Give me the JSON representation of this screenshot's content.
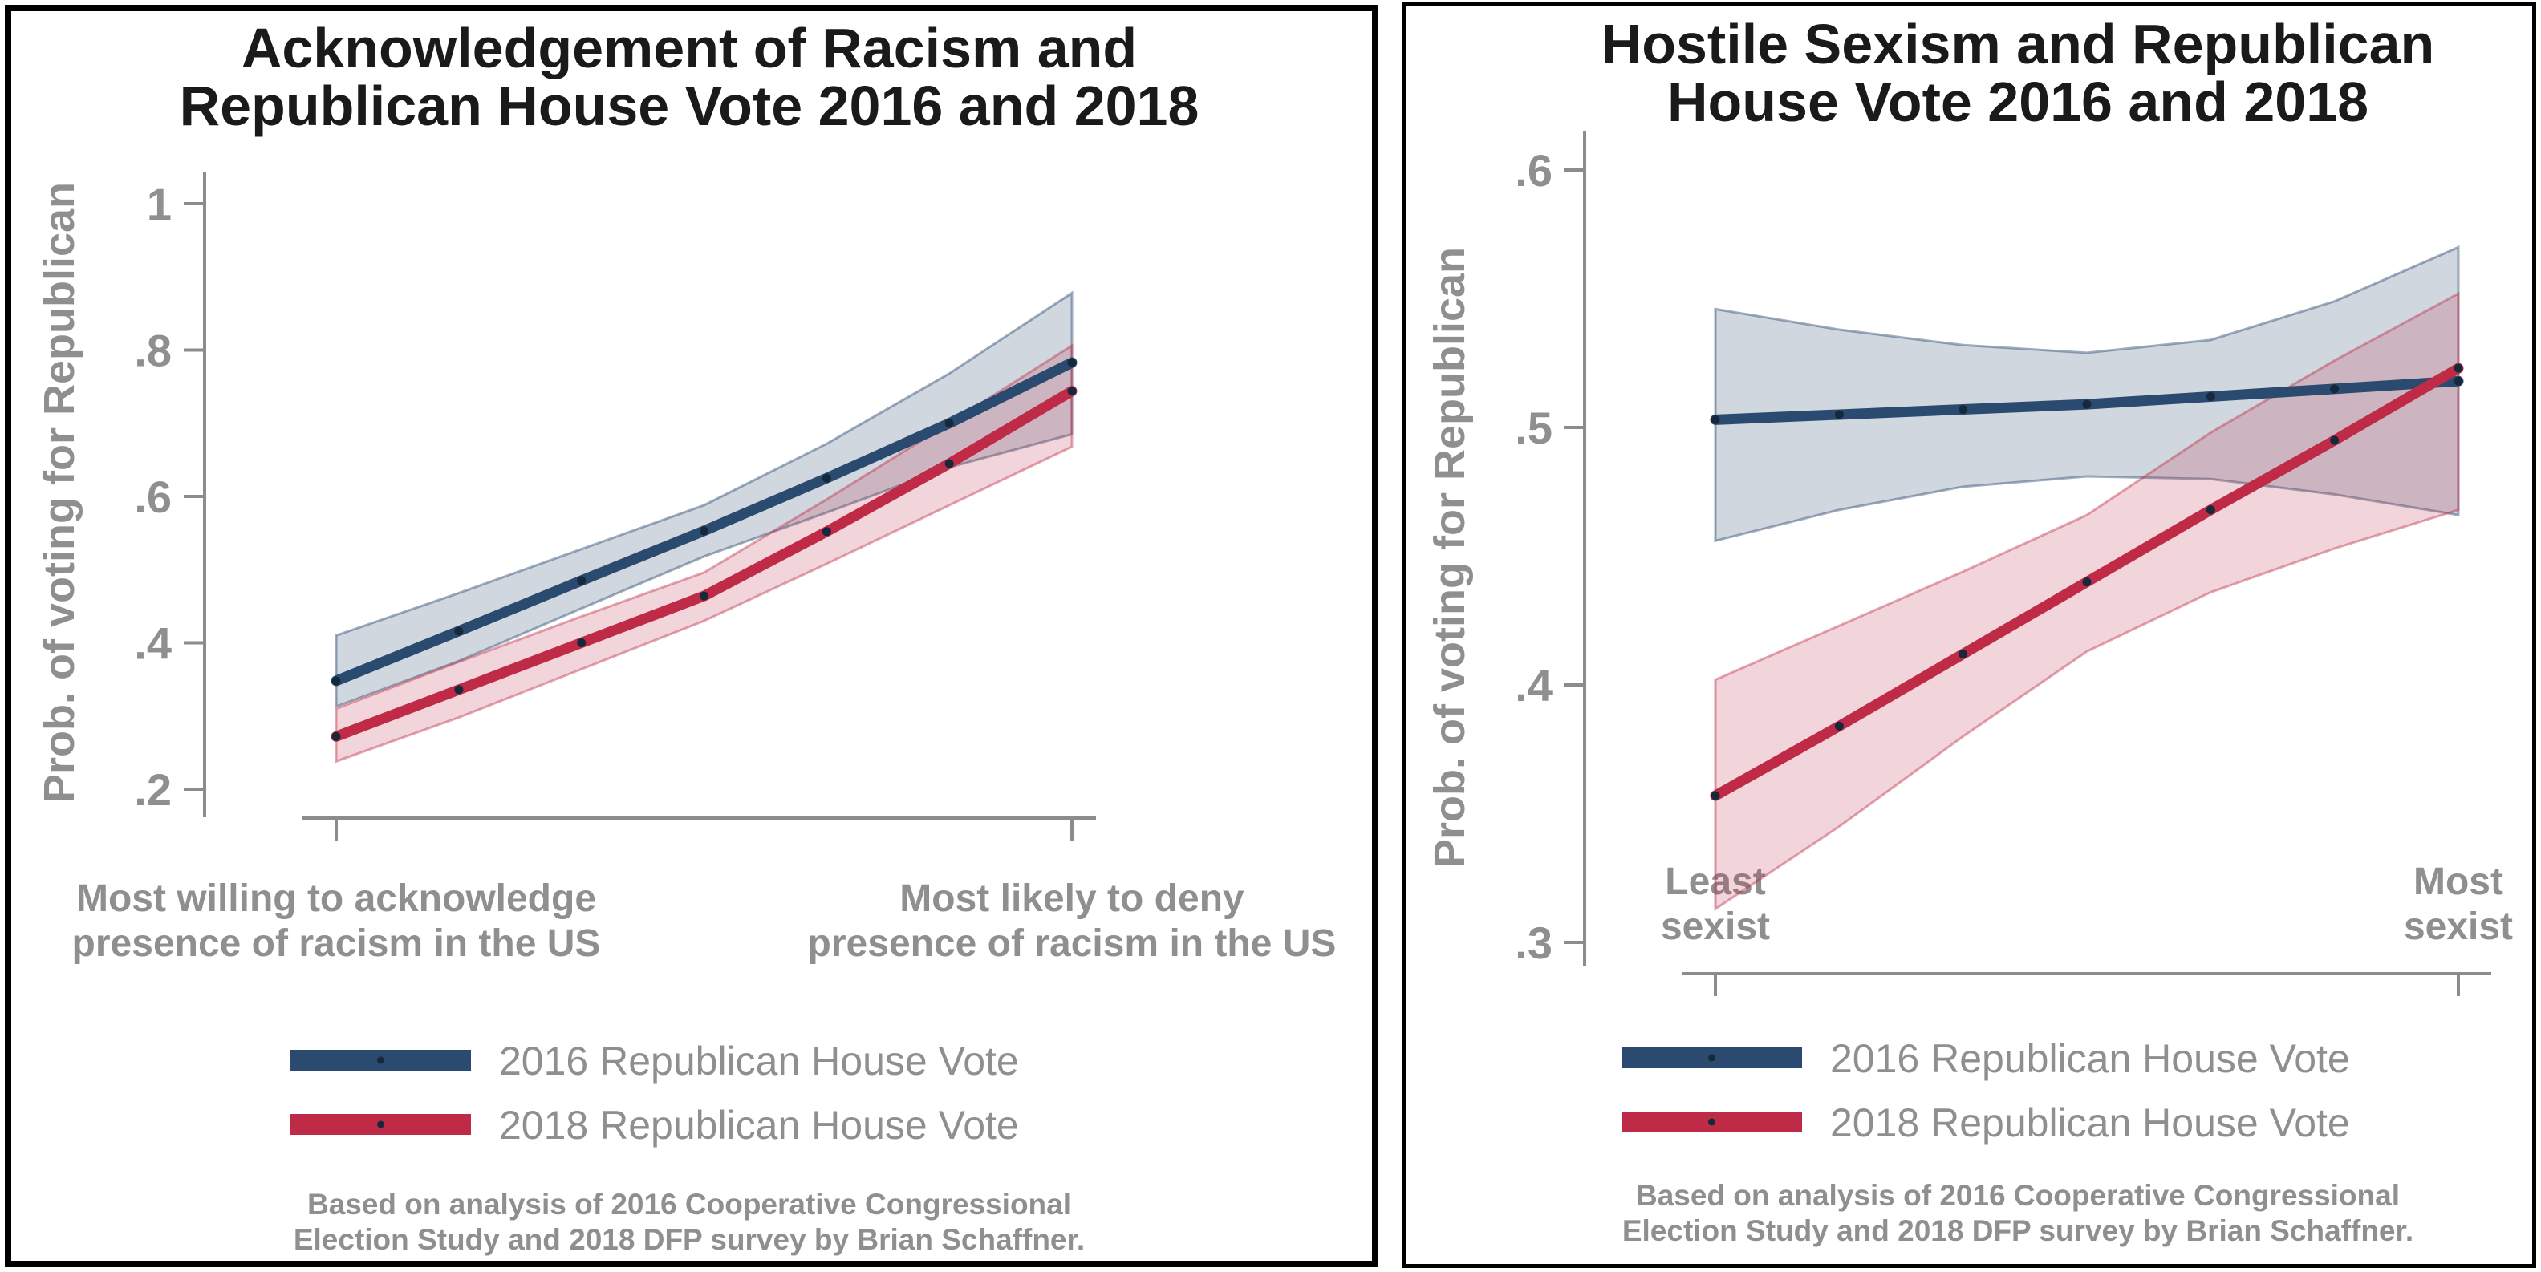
{
  "page": {
    "background": "#ffffff",
    "panel_border_color": "#000000"
  },
  "colors": {
    "title_text": "#1a1a1a",
    "gray_text": "#8f8f8f",
    "axis": "#8c8c8c",
    "blue_2016": "#2b4a6f",
    "red_2018": "#bf2b46",
    "blue_band_fill": "rgba(43,74,111,0.22)",
    "blue_band_edge": "rgba(43,74,111,0.45)",
    "red_band_fill": "rgba(191,43,70,0.20)",
    "red_band_edge": "rgba(191,43,70,0.42)",
    "marker": "#16283c"
  },
  "chart_data": [
    {
      "type": "line",
      "title": "Acknowledgement of Racism and Republican House Vote 2016 and 2018",
      "title_lines": [
        "Acknowledgement of Racism and",
        "Republican House Vote 2016 and 2018"
      ],
      "ylabel": "Prob. of voting for Republican",
      "ylim": [
        0.2,
        1.0
      ],
      "yticks": [
        {
          "label": "1",
          "value": 1.0
        },
        {
          "label": ".8",
          "value": 0.8
        },
        {
          "label": ".6",
          "value": 0.6
        },
        {
          "label": ".4",
          "value": 0.4
        },
        {
          "label": ".2",
          "value": 0.2
        }
      ],
      "grid": false,
      "x": [
        0,
        0.1667,
        0.3333,
        0.5,
        0.6667,
        0.8333,
        1
      ],
      "xtick_captions": [
        {
          "position": 0,
          "lines": [
            "Most willing to acknowledge",
            "presence of racism in the US"
          ]
        },
        {
          "position": 1,
          "lines": [
            "Most likely to deny",
            "presence of racism in the US"
          ]
        }
      ],
      "series": [
        {
          "name": "2016 Republican House Vote",
          "color_key": "blue_2016",
          "values": [
            0.348,
            0.416,
            0.485,
            0.553,
            0.625,
            0.7,
            0.783
          ],
          "ci_lower": [
            0.313,
            0.375,
            0.447,
            0.518,
            0.578,
            0.64,
            0.685
          ],
          "ci_upper": [
            0.41,
            0.468,
            0.528,
            0.588,
            0.672,
            0.768,
            0.878
          ]
        },
        {
          "name": "2018 Republican House Vote",
          "color_key": "red_2018",
          "values": [
            0.272,
            0.336,
            0.4,
            0.464,
            0.552,
            0.645,
            0.744
          ],
          "ci_lower": [
            0.238,
            0.298,
            0.364,
            0.43,
            0.508,
            0.588,
            0.668
          ],
          "ci_upper": [
            0.31,
            0.374,
            0.436,
            0.496,
            0.596,
            0.7,
            0.806
          ]
        }
      ],
      "legend_position": "bottom",
      "footnote_lines": [
        "Based on analysis of 2016 Cooperative Congressional",
        "Election Study and 2018 DFP survey by Brian Schaffner."
      ]
    },
    {
      "type": "line",
      "title": "Hostile Sexism and Republican House Vote 2016 and 2018",
      "title_lines": [
        "Hostile Sexism and Republican",
        "House Vote 2016 and 2018"
      ],
      "ylabel": "Prob. of voting for Republican",
      "ylim": [
        0.3,
        0.6
      ],
      "yticks": [
        {
          "label": ".6",
          "value": 0.6
        },
        {
          "label": ".5",
          "value": 0.5
        },
        {
          "label": ".4",
          "value": 0.4
        },
        {
          "label": ".3",
          "value": 0.3
        }
      ],
      "grid": false,
      "x": [
        0,
        0.1667,
        0.3333,
        0.5,
        0.6667,
        0.8333,
        1
      ],
      "xtick_captions": [
        {
          "position": 0,
          "lines": [
            "Least",
            "sexist"
          ]
        },
        {
          "position": 1,
          "lines": [
            "Most",
            "sexist"
          ]
        }
      ],
      "series": [
        {
          "name": "2016 Republican House Vote",
          "color_key": "blue_2016",
          "values": [
            0.503,
            0.505,
            0.507,
            0.509,
            0.512,
            0.515,
            0.518
          ],
          "ci_lower": [
            0.456,
            0.468,
            0.477,
            0.481,
            0.48,
            0.474,
            0.466
          ],
          "ci_upper": [
            0.546,
            0.538,
            0.532,
            0.529,
            0.534,
            0.549,
            0.57
          ]
        },
        {
          "name": "2018 Republican House Vote",
          "color_key": "red_2018",
          "values": [
            0.357,
            0.384,
            0.412,
            0.44,
            0.468,
            0.495,
            0.523
          ],
          "ci_lower": [
            0.313,
            0.345,
            0.38,
            0.413,
            0.436,
            0.453,
            0.468
          ],
          "ci_upper": [
            0.402,
            0.423,
            0.444,
            0.466,
            0.498,
            0.526,
            0.552
          ]
        }
      ],
      "legend_position": "bottom",
      "footnote_lines": [
        "Based on analysis of 2016 Cooperative Congressional",
        "Election Study and 2018 DFP survey by Brian Schaffner."
      ]
    }
  ]
}
